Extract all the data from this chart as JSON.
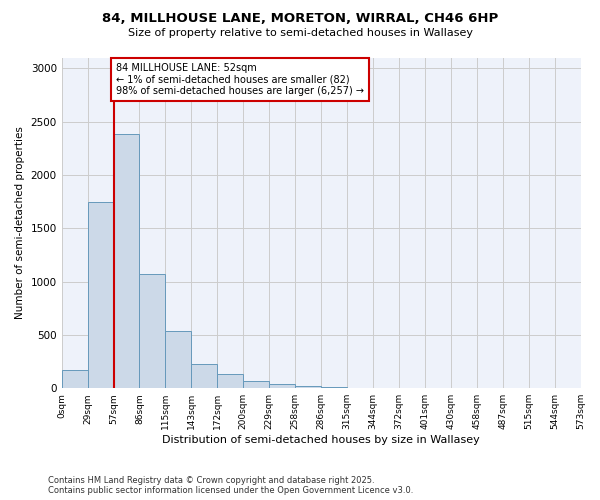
{
  "title_line1": "84, MILLHOUSE LANE, MORETON, WIRRAL, CH46 6HP",
  "title_line2": "Size of property relative to semi-detached houses in Wallasey",
  "xlabel": "Distribution of semi-detached houses by size in Wallasey",
  "ylabel": "Number of semi-detached properties",
  "footer_line1": "Contains HM Land Registry data © Crown copyright and database right 2025.",
  "footer_line2": "Contains public sector information licensed under the Open Government Licence v3.0.",
  "bin_labels": [
    "0sqm",
    "29sqm",
    "57sqm",
    "86sqm",
    "115sqm",
    "143sqm",
    "172sqm",
    "200sqm",
    "229sqm",
    "258sqm",
    "286sqm",
    "315sqm",
    "344sqm",
    "372sqm",
    "401sqm",
    "430sqm",
    "458sqm",
    "487sqm",
    "515sqm",
    "544sqm",
    "573sqm"
  ],
  "bar_values": [
    175,
    1750,
    2380,
    1070,
    540,
    230,
    130,
    65,
    35,
    25,
    15,
    5,
    3,
    2,
    1,
    0,
    0,
    0,
    0,
    0
  ],
  "bar_color": "#ccd9e8",
  "bar_edge_color": "#6699bb",
  "grid_color": "#cccccc",
  "bg_color": "#eef2fa",
  "annotation_text": "84 MILLHOUSE LANE: 52sqm\n← 1% of semi-detached houses are smaller (82)\n98% of semi-detached houses are larger (6,257) →",
  "annotation_box_color": "#ffffff",
  "annotation_box_edge": "#cc0000",
  "vline_color": "#cc0000",
  "ylim": [
    0,
    3100
  ],
  "yticks": [
    0,
    500,
    1000,
    1500,
    2000,
    2500,
    3000
  ],
  "vline_x": 2.0
}
